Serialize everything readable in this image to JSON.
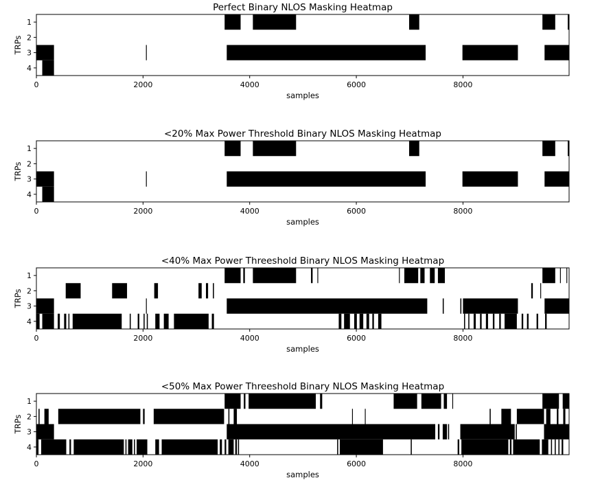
{
  "chart_data": [
    {
      "type": "heatmap",
      "title": "Perfect Binary NLOS Masking Heatmap",
      "xlabel": "samples",
      "ylabel": "TRPs",
      "xlim": [
        0,
        9990
      ],
      "xticks": [
        "0",
        "2000",
        "4000",
        "6000",
        "8000"
      ],
      "rows": [
        "1",
        "2",
        "3",
        "4"
      ],
      "colors": {
        "masked": "#000000",
        "clear": "#ffffff"
      },
      "rows_data": [
        {
          "label": "1",
          "intervals": [
            [
              3530,
              3830
            ],
            [
              4060,
              4870
            ],
            [
              6990,
              7180
            ],
            [
              9490,
              9730
            ],
            [
              9965,
              9990
            ]
          ]
        },
        {
          "label": "2",
          "intervals": []
        },
        {
          "label": "3",
          "intervals": [
            [
              0,
              330
            ],
            [
              2055,
              2070
            ],
            [
              3570,
              7300
            ],
            [
              7990,
              9030
            ],
            [
              9530,
              9990
            ]
          ]
        },
        {
          "label": "4",
          "intervals": [
            [
              110,
              330
            ]
          ]
        }
      ]
    },
    {
      "type": "heatmap",
      "title": "<20% Max Power Threshold Binary NLOS Masking Heatmap",
      "xlabel": "samples",
      "ylabel": "TRPs",
      "xlim": [
        0,
        9990
      ],
      "xticks": [
        "0",
        "2000",
        "4000",
        "6000",
        "8000"
      ],
      "rows": [
        "1",
        "2",
        "3",
        "4"
      ],
      "colors": {
        "masked": "#000000",
        "clear": "#ffffff"
      },
      "rows_data": [
        {
          "label": "1",
          "intervals": [
            [
              3530,
              3830
            ],
            [
              4060,
              4870
            ],
            [
              6990,
              7180
            ],
            [
              9490,
              9730
            ],
            [
              9965,
              9990
            ]
          ]
        },
        {
          "label": "2",
          "intervals": []
        },
        {
          "label": "3",
          "intervals": [
            [
              0,
              330
            ],
            [
              2055,
              2070
            ],
            [
              3570,
              7300
            ],
            [
              7990,
              9030
            ],
            [
              9530,
              9990
            ]
          ]
        },
        {
          "label": "4",
          "intervals": [
            [
              110,
              330
            ]
          ]
        }
      ]
    },
    {
      "type": "heatmap",
      "title": "<40% Max Power Threeshold Binary NLOS Masking Heatmap",
      "xlabel": "samples",
      "ylabel": "TRPs",
      "xlim": [
        0,
        9990
      ],
      "xticks": [
        "0",
        "2000",
        "4000",
        "6000",
        "8000"
      ],
      "rows": [
        "1",
        "2",
        "3",
        "4"
      ],
      "colors": {
        "masked": "#000000",
        "clear": "#ffffff"
      },
      "rows_data": [
        {
          "label": "1",
          "intervals": [
            [
              3530,
              3830
            ],
            [
              3880,
              3910
            ],
            [
              4060,
              4870
            ],
            [
              5150,
              5180
            ],
            [
              5270,
              5285
            ],
            [
              6800,
              6815
            ],
            [
              6900,
              7160
            ],
            [
              7200,
              7280
            ],
            [
              7380,
              7470
            ],
            [
              7530,
              7660
            ],
            [
              9490,
              9730
            ],
            [
              9820,
              9835
            ],
            [
              9940,
              9955
            ]
          ]
        },
        {
          "label": "2",
          "intervals": [
            [
              550,
              830
            ],
            [
              1420,
              1700
            ],
            [
              2210,
              2280
            ],
            [
              3040,
              3100
            ],
            [
              3180,
              3220
            ],
            [
              3310,
              3330
            ],
            [
              9280,
              9310
            ],
            [
              9450,
              9465
            ]
          ]
        },
        {
          "label": "3",
          "intervals": [
            [
              0,
              330
            ],
            [
              2055,
              2070
            ],
            [
              3570,
              7330
            ],
            [
              7620,
              7640
            ],
            [
              7950,
              7970
            ],
            [
              8000,
              9030
            ],
            [
              9530,
              9990
            ]
          ]
        },
        {
          "label": "4",
          "intervals": [
            [
              0,
              60
            ],
            [
              110,
              330
            ],
            [
              400,
              440
            ],
            [
              520,
              560
            ],
            [
              600,
              620
            ],
            [
              680,
              1600
            ],
            [
              1750,
              1770
            ],
            [
              1900,
              1930
            ],
            [
              2010,
              2030
            ],
            [
              2070,
              2090
            ],
            [
              2230,
              2310
            ],
            [
              2390,
              2480
            ],
            [
              2580,
              3230
            ],
            [
              3290,
              3330
            ],
            [
              5670,
              5720
            ],
            [
              5770,
              5880
            ],
            [
              5960,
              6010
            ],
            [
              6060,
              6130
            ],
            [
              6190,
              6240
            ],
            [
              6300,
              6330
            ],
            [
              6410,
              6470
            ],
            [
              8020,
              8040
            ],
            [
              8100,
              8120
            ],
            [
              8200,
              8240
            ],
            [
              8320,
              8350
            ],
            [
              8430,
              8470
            ],
            [
              8560,
              8590
            ],
            [
              8680,
              8710
            ],
            [
              8780,
              9010
            ],
            [
              9100,
              9130
            ],
            [
              9200,
              9230
            ],
            [
              9380,
              9410
            ],
            [
              9540,
              9570
            ]
          ]
        }
      ]
    },
    {
      "type": "heatmap",
      "title": "<50% Max Power Threeshold Binary NLOS Masking Heatmap",
      "xlabel": "samples",
      "ylabel": "TRPs",
      "xlim": [
        0,
        9990
      ],
      "xticks": [
        "0",
        "2000",
        "4000",
        "6000",
        "8000"
      ],
      "rows": [
        "1",
        "2",
        "3",
        "4"
      ],
      "colors": {
        "masked": "#000000",
        "clear": "#ffffff"
      },
      "rows_data": [
        {
          "label": "1",
          "intervals": [
            [
              3530,
              3830
            ],
            [
              3890,
              3920
            ],
            [
              3980,
              5240
            ],
            [
              5320,
              5360
            ],
            [
              6700,
              7140
            ],
            [
              7220,
              7590
            ],
            [
              7640,
              7700
            ],
            [
              7800,
              7815
            ],
            [
              9490,
              9800
            ],
            [
              9870,
              9990
            ]
          ]
        },
        {
          "label": "2",
          "intervals": [
            [
              40,
              60
            ],
            [
              150,
              230
            ],
            [
              410,
              1950
            ],
            [
              2000,
              2030
            ],
            [
              2200,
              3520
            ],
            [
              3600,
              3620
            ],
            [
              3700,
              3760
            ],
            [
              5920,
              5935
            ],
            [
              6160,
              6175
            ],
            [
              8500,
              8520
            ],
            [
              8720,
              8900
            ],
            [
              9010,
              9520
            ],
            [
              9560,
              9640
            ],
            [
              9760,
              9790
            ],
            [
              9880,
              9920
            ]
          ]
        },
        {
          "label": "3",
          "intervals": [
            [
              0,
              330
            ],
            [
              3570,
              7480
            ],
            [
              7530,
              7560
            ],
            [
              7620,
              7700
            ],
            [
              7720,
              7740
            ],
            [
              7950,
              8970
            ],
            [
              8990,
              9010
            ],
            [
              9520,
              9990
            ]
          ]
        },
        {
          "label": "4",
          "intervals": [
            [
              0,
              40
            ],
            [
              90,
              560
            ],
            [
              620,
              650
            ],
            [
              700,
              1640
            ],
            [
              1670,
              1690
            ],
            [
              1720,
              1800
            ],
            [
              1830,
              1850
            ],
            [
              1880,
              2080
            ],
            [
              2230,
              2300
            ],
            [
              2350,
              3400
            ],
            [
              3440,
              3480
            ],
            [
              3530,
              3560
            ],
            [
              3600,
              3700
            ],
            [
              3730,
              3760
            ],
            [
              3780,
              3800
            ],
            [
              5640,
              5660
            ],
            [
              5690,
              6500
            ],
            [
              7020,
              7040
            ],
            [
              7900,
              7930
            ],
            [
              7970,
              8850
            ],
            [
              8880,
              8910
            ],
            [
              8940,
              9440
            ],
            [
              9480,
              9600
            ],
            [
              9650,
              9670
            ],
            [
              9720,
              9740
            ],
            [
              9790,
              9810
            ],
            [
              9850,
              9880
            ]
          ]
        }
      ]
    }
  ]
}
